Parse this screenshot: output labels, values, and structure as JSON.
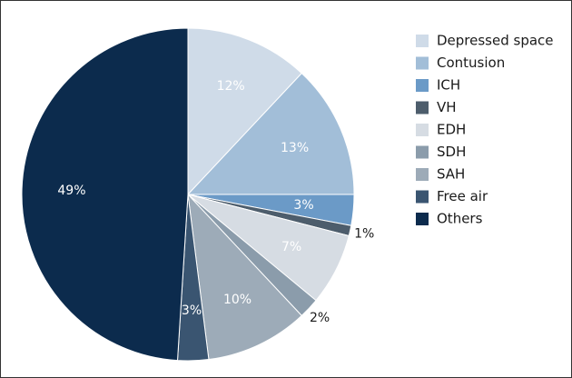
{
  "chart_data": {
    "type": "pie",
    "categories": [
      "Depressed space",
      "Contusion",
      "ICH",
      "VH",
      "EDH",
      "SDH",
      "SAH",
      "Free air",
      "Others"
    ],
    "values": [
      12,
      13,
      3,
      1,
      7,
      2,
      10,
      3,
      49
    ],
    "value_labels": [
      "12%",
      "13%",
      "3%",
      "1%",
      "7%",
      "2%",
      "10%",
      "3%",
      "49%"
    ],
    "colors": [
      "#cfdbe8",
      "#a2bed8",
      "#6b9ac7",
      "#4d5d6c",
      "#d6dce3",
      "#8b9cab",
      "#9dabb8",
      "#3a5571",
      "#0c2b4d"
    ],
    "legend": "right"
  }
}
